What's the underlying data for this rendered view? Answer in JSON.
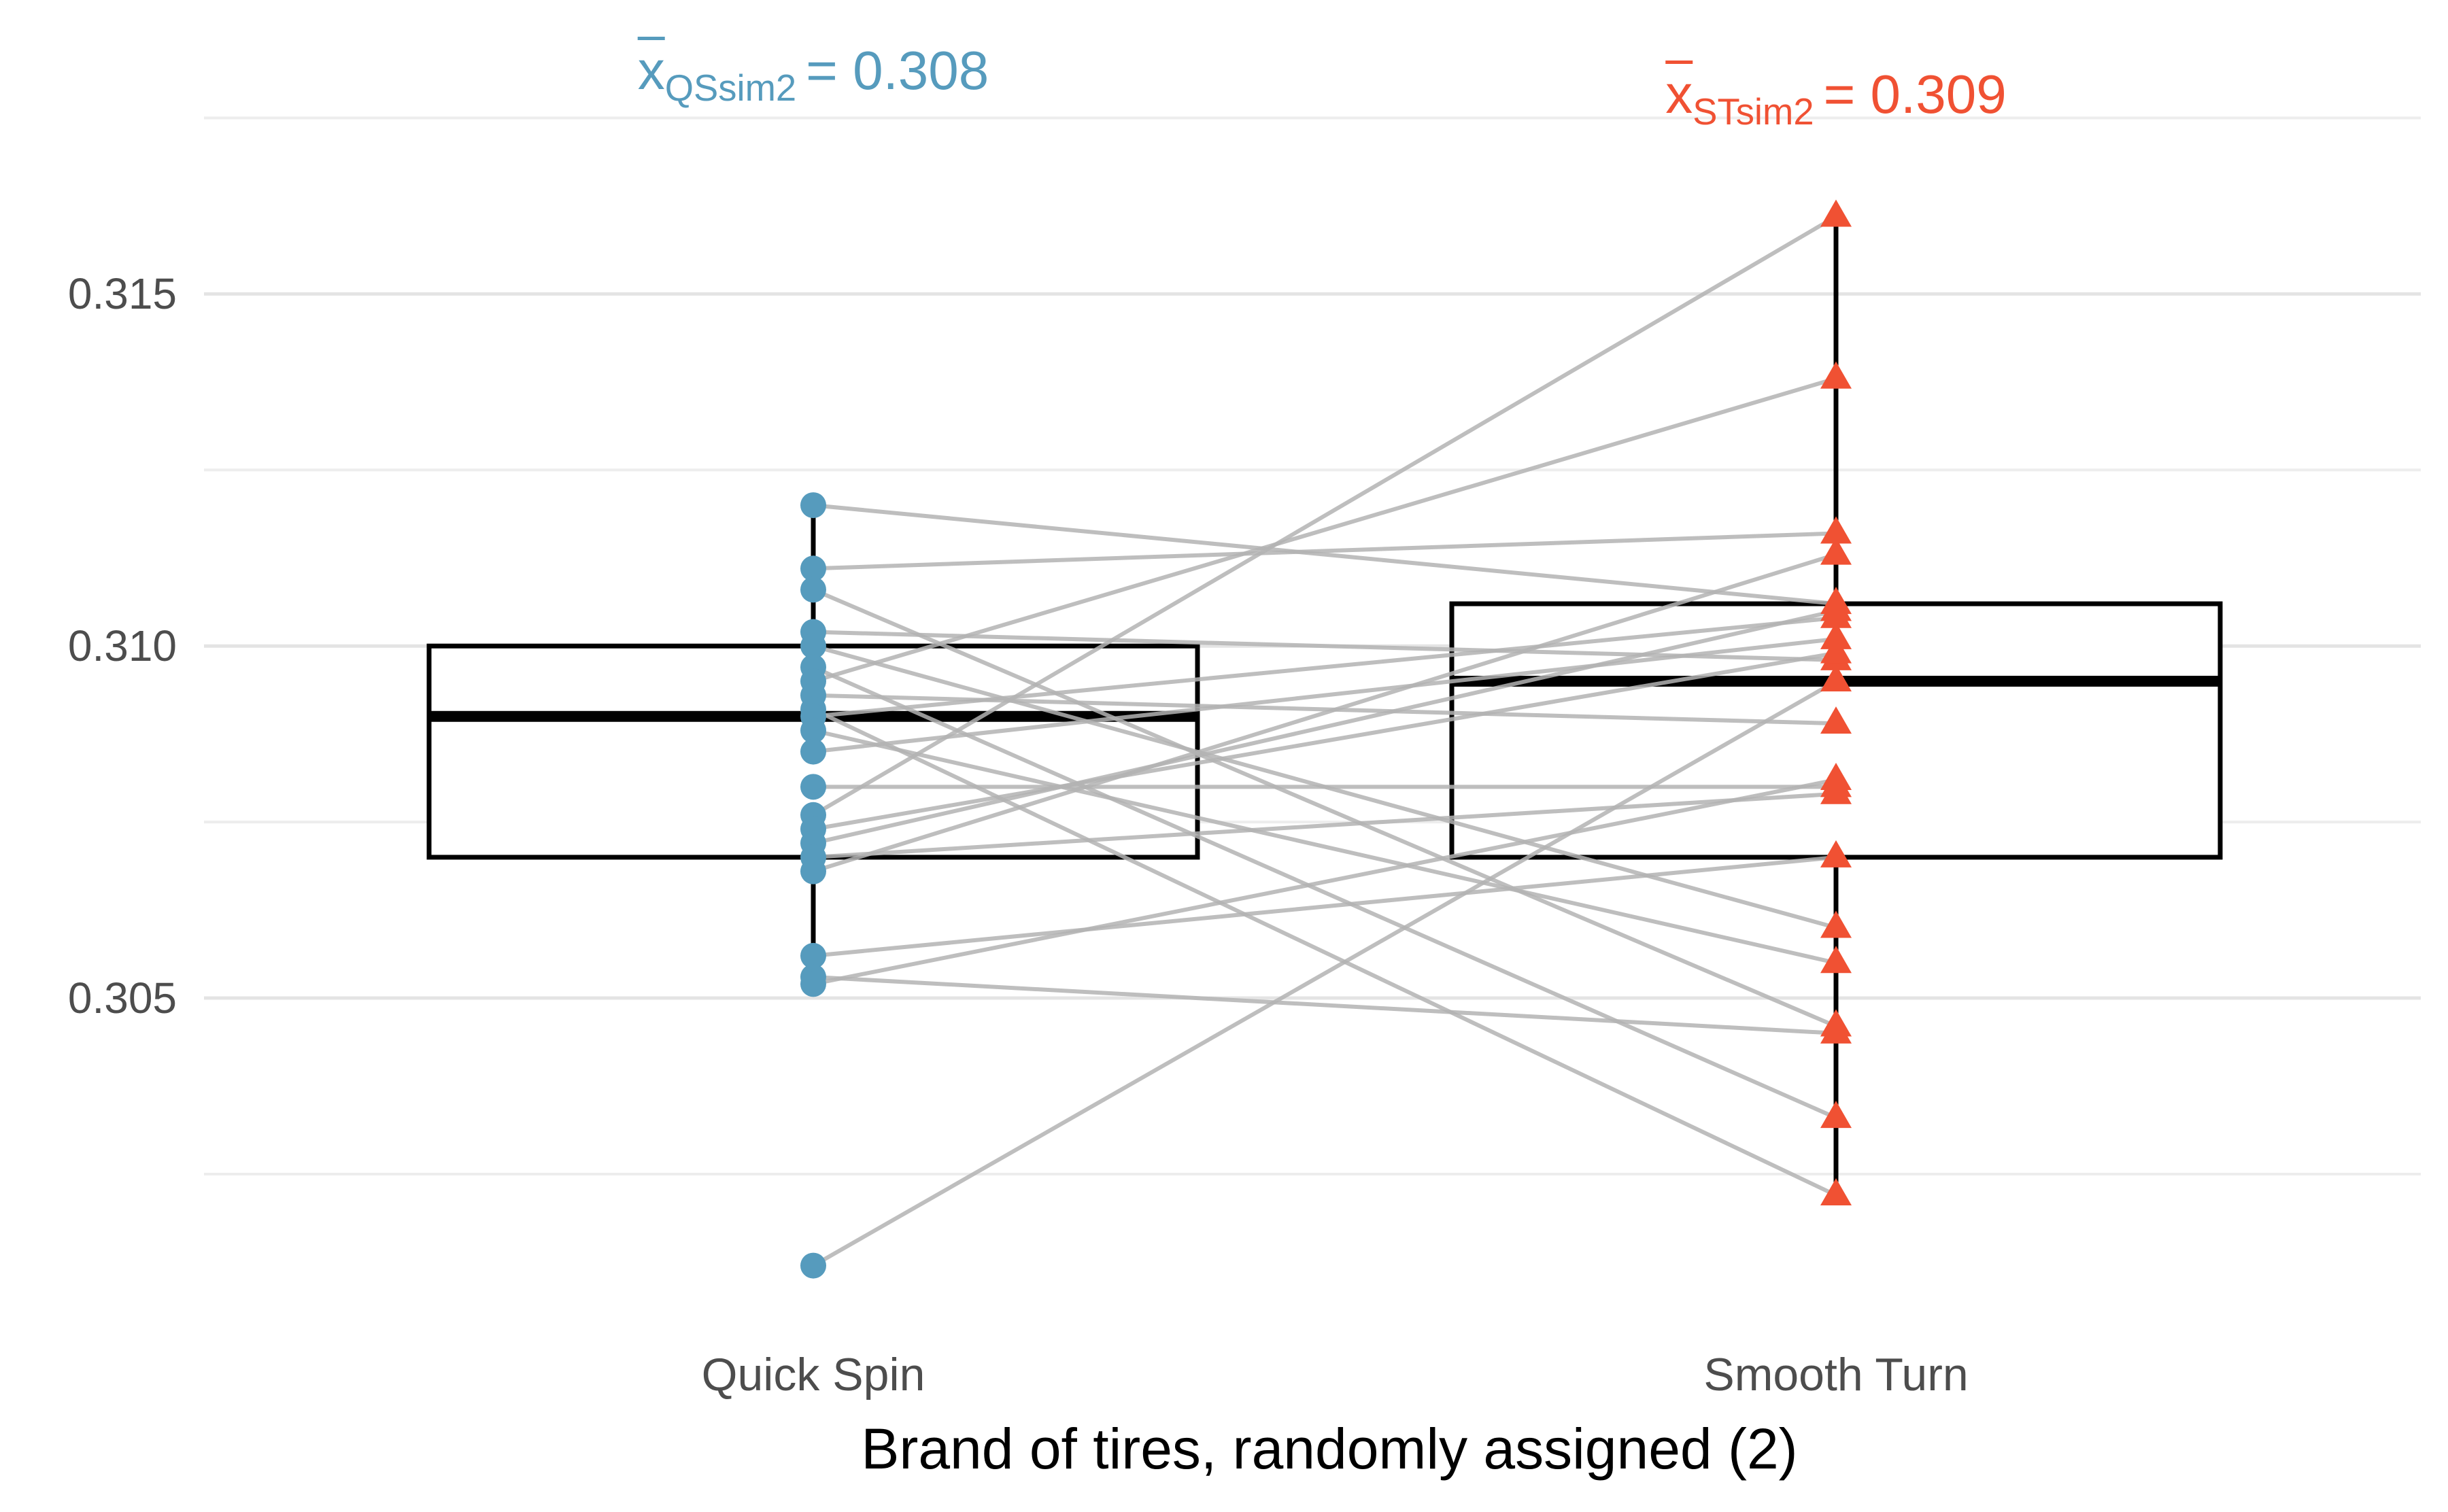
{
  "chart_data": {
    "type": "scatter",
    "variant": "paired boxplots with aligned dot strips connected by gray segments (two randomized groups)",
    "title": "",
    "xlabel": "Brand of tires, randomly assigned (2)",
    "ylabel": "",
    "categories": [
      "Quick Spin",
      "Smooth Turn"
    ],
    "ylim": [
      0.30025,
      0.31763
    ],
    "y_major_ticks": [
      0.305,
      0.31,
      0.315
    ],
    "y_major_tick_labels": [
      "0.305",
      "0.310",
      "0.315"
    ],
    "y_minor_ticks": [
      0.3025,
      0.3075,
      0.3125,
      0.3175
    ],
    "grid": "horizontal major and minor gridlines, light gray on white panel",
    "legend": "none",
    "colors": {
      "quick_spin_points": "#569BBD",
      "smooth_turn_points": "#F05133",
      "pair_lines": "#B3B3B3",
      "box_stroke": "#000000",
      "gridline_major": "#e4e4e4",
      "gridline_minor": "#ededed",
      "tick_label": "#4d4d4d"
    },
    "annotations": [
      {
        "var": "x",
        "subscript": "QSsim2",
        "equals_value": "= 0.308",
        "color": "#569BBD",
        "anchor_category": "Quick Spin"
      },
      {
        "var": "x",
        "subscript": "STsim2",
        "equals_value": "= 0.309",
        "color": "#F05133",
        "anchor_category": "Smooth Turn"
      }
    ],
    "series": [
      {
        "name": "Quick Spin",
        "marker": "circle",
        "color": "#569BBD",
        "mean": 0.308,
        "values": [
          0.312,
          0.3111,
          0.3108,
          0.3102,
          0.31,
          0.3097,
          0.3095,
          0.3093,
          0.3091,
          0.309,
          0.3088,
          0.3085,
          0.308,
          0.3076,
          0.3074,
          0.3072,
          0.307,
          0.3068,
          0.3056,
          0.3053,
          0.3052,
          0.3012
        ]
      },
      {
        "name": "Smooth Turn",
        "marker": "triangle-up",
        "color": "#F05133",
        "mean": 0.309,
        "values": [
          0.3106,
          0.3116,
          0.3046,
          0.3098,
          0.306,
          0.3033,
          0.3138,
          0.3089,
          0.3022,
          0.3104,
          0.3055,
          0.3101,
          0.308,
          0.3161,
          0.3099,
          0.3105,
          0.3079,
          0.3113,
          0.307,
          0.3045,
          0.3081,
          0.3095
        ]
      }
    ],
    "pairs": [
      [
        0.312,
        0.3106
      ],
      [
        0.3111,
        0.3116
      ],
      [
        0.3108,
        0.3046
      ],
      [
        0.3102,
        0.3098
      ],
      [
        0.31,
        0.306
      ],
      [
        0.3097,
        0.3033
      ],
      [
        0.3095,
        0.3138
      ],
      [
        0.3093,
        0.3089
      ],
      [
        0.3091,
        0.3022
      ],
      [
        0.309,
        0.3104
      ],
      [
        0.3088,
        0.3055
      ],
      [
        0.3085,
        0.3101
      ],
      [
        0.308,
        0.308
      ],
      [
        0.3076,
        0.3161
      ],
      [
        0.3074,
        0.3099
      ],
      [
        0.3072,
        0.3105
      ],
      [
        0.307,
        0.3079
      ],
      [
        0.3068,
        0.3113
      ],
      [
        0.3056,
        0.307
      ],
      [
        0.3053,
        0.3045
      ],
      [
        0.3052,
        0.3081
      ],
      [
        0.3012,
        0.3095
      ]
    ],
    "boxplots": [
      {
        "category": "Quick Spin",
        "q1": 0.307,
        "median": 0.309,
        "q3": 0.31,
        "whisker_low": 0.3052,
        "whisker_high": 0.312
      },
      {
        "category": "Smooth Turn",
        "q1": 0.307,
        "median": 0.3095,
        "q3": 0.3106,
        "whisker_low": 0.3022,
        "whisker_high": 0.3161
      }
    ]
  }
}
